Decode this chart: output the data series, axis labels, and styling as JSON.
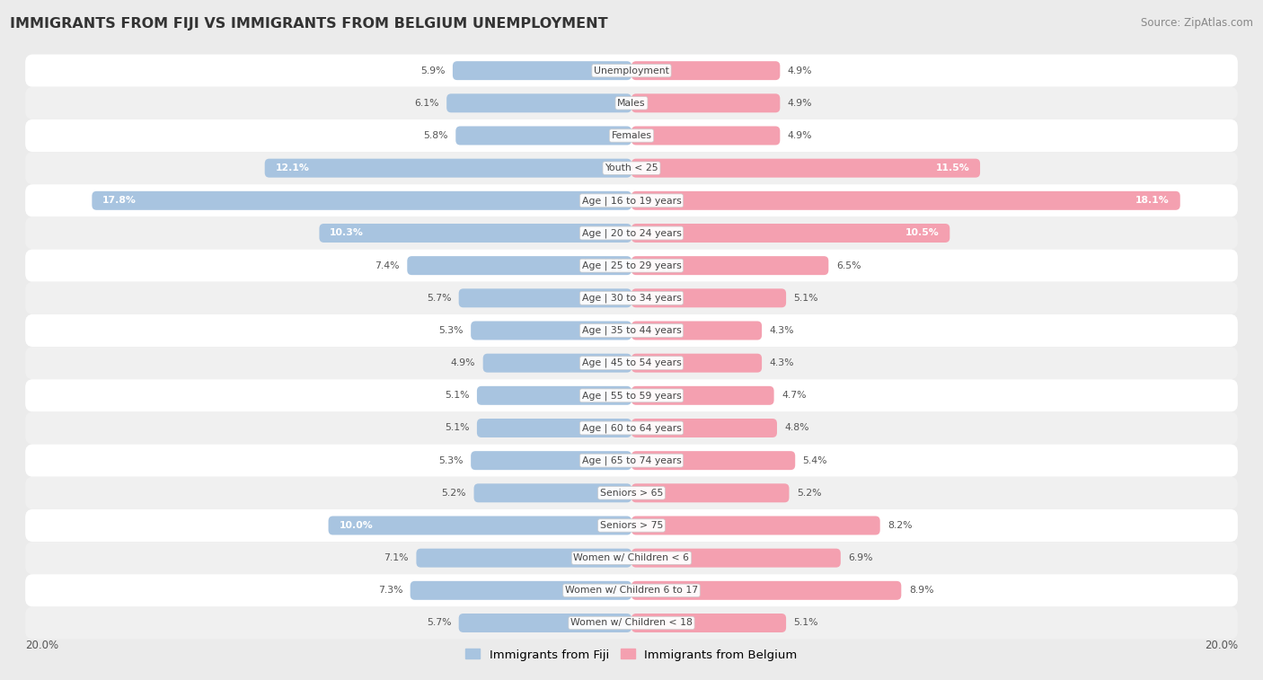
{
  "title": "IMMIGRANTS FROM FIJI VS IMMIGRANTS FROM BELGIUM UNEMPLOYMENT",
  "source": "Source: ZipAtlas.com",
  "categories": [
    "Unemployment",
    "Males",
    "Females",
    "Youth < 25",
    "Age | 16 to 19 years",
    "Age | 20 to 24 years",
    "Age | 25 to 29 years",
    "Age | 30 to 34 years",
    "Age | 35 to 44 years",
    "Age | 45 to 54 years",
    "Age | 55 to 59 years",
    "Age | 60 to 64 years",
    "Age | 65 to 74 years",
    "Seniors > 65",
    "Seniors > 75",
    "Women w/ Children < 6",
    "Women w/ Children 6 to 17",
    "Women w/ Children < 18"
  ],
  "fiji_values": [
    5.9,
    6.1,
    5.8,
    12.1,
    17.8,
    10.3,
    7.4,
    5.7,
    5.3,
    4.9,
    5.1,
    5.1,
    5.3,
    5.2,
    10.0,
    7.1,
    7.3,
    5.7
  ],
  "belgium_values": [
    4.9,
    4.9,
    4.9,
    11.5,
    18.1,
    10.5,
    6.5,
    5.1,
    4.3,
    4.3,
    4.7,
    4.8,
    5.4,
    5.2,
    8.2,
    6.9,
    8.9,
    5.1
  ],
  "fiji_color": "#a8c4e0",
  "belgium_color": "#f4a0b0",
  "fiji_label": "Immigrants from Fiji",
  "belgium_label": "Immigrants from Belgium",
  "axis_limit": 20.0,
  "bg_color": "#ebebeb",
  "row_bg_even": "#ffffff",
  "row_bg_odd": "#f0f0f0",
  "highlight_threshold": 10.0,
  "highlight_fiji": [
    3,
    4,
    5,
    14
  ],
  "highlight_belgium": [
    3,
    4,
    5,
    14
  ]
}
